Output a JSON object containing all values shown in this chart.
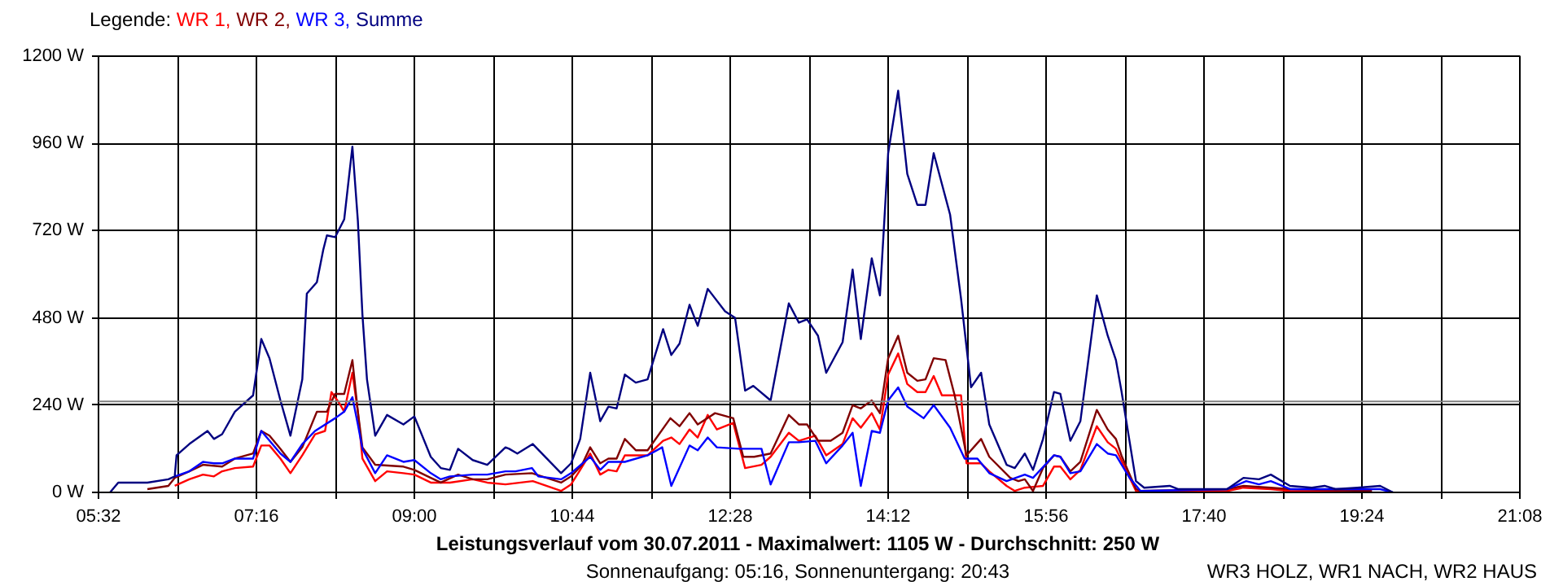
{
  "chart_data": {
    "type": "line",
    "title": "Leistungsverlauf vom 30.07.2011 - Maximalwert: 1105 W - Durchschnitt: 250 W",
    "subtitle": "Sonnenaufgang: 05:16, Sonnenuntergang: 20:43",
    "annotations": [
      "WR3 HOLZ, WR1 NACH, WR2 HAUS"
    ],
    "legend_title": "Legende:",
    "legend": "top left",
    "grid": true,
    "xlim": [
      5.5333,
      21.1333
    ],
    "ylim": [
      0,
      1200
    ],
    "xticks": [
      {
        "value": 5.5333,
        "label": "05:32"
      },
      {
        "value": 6.4,
        "label": null
      },
      {
        "value": 7.2667,
        "label": "07:16"
      },
      {
        "value": 8.1333,
        "label": null
      },
      {
        "value": 9,
        "label": "09:00"
      },
      {
        "value": 9.8667,
        "label": null
      },
      {
        "value": 10.7333,
        "label": "10:44"
      },
      {
        "value": 11.6,
        "label": null
      },
      {
        "value": 12.4667,
        "label": "12:28"
      },
      {
        "value": 13.3333,
        "label": null
      },
      {
        "value": 14.2,
        "label": "14:12"
      },
      {
        "value": 15.0667,
        "label": null
      },
      {
        "value": 15.9333,
        "label": "15:56"
      },
      {
        "value": 16.8,
        "label": null
      },
      {
        "value": 17.6667,
        "label": "17:40"
      },
      {
        "value": 18.5333,
        "label": null
      },
      {
        "value": 19.4,
        "label": "19:24"
      },
      {
        "value": 20.2667,
        "label": null
      },
      {
        "value": 21.1333,
        "label": "21:08"
      }
    ],
    "yticks": [
      {
        "value": 0,
        "label": "0 W"
      },
      {
        "value": 240,
        "label": "240 W"
      },
      {
        "value": 480,
        "label": "480 W"
      },
      {
        "value": 720,
        "label": "720 W"
      },
      {
        "value": 960,
        "label": "960 W"
      },
      {
        "value": 1200,
        "label": "1200 W"
      }
    ],
    "ref_lines": [
      {
        "axis": "y",
        "value": 250,
        "label": null,
        "color": "#808080"
      }
    ],
    "series": [
      {
        "name": "WR 1,",
        "color": "#ff0000",
        "x": [
          6.37,
          6.53,
          6.68,
          6.8,
          6.89,
          7.03,
          7.23,
          7.32,
          7.41,
          7.53,
          7.64,
          7.77,
          7.91,
          8.02,
          8.09,
          8.18,
          8.23,
          8.32,
          8.38,
          8.43,
          8.57,
          8.7,
          8.88,
          9.0,
          9.18,
          9.39,
          9.64,
          9.8,
          10.0,
          10.3,
          10.61,
          10.72,
          10.82,
          10.93,
          11.04,
          11.13,
          11.22,
          11.31,
          11.56,
          11.73,
          11.82,
          11.91,
          12.02,
          12.11,
          12.22,
          12.32,
          12.5,
          12.63,
          12.81,
          12.91,
          13.11,
          13.22,
          13.4,
          13.52,
          13.7,
          13.81,
          13.9,
          14.02,
          14.11,
          14.2,
          14.31,
          14.41,
          14.52,
          14.61,
          14.7,
          14.79,
          15.0,
          15.06,
          15.22,
          15.31,
          15.5,
          15.59,
          15.7,
          15.9,
          16.02,
          16.09,
          16.2,
          16.31,
          16.49,
          16.61,
          16.7,
          16.92,
          16.97,
          17.92,
          18.1,
          18.4,
          18.61,
          19.51
        ],
        "values": [
          18,
          36,
          49,
          44,
          58,
          67,
          71,
          129,
          129,
          93,
          53,
          102,
          160,
          169,
          276,
          244,
          222,
          329,
          222,
          93,
          31,
          58,
          53,
          49,
          27,
          27,
          36,
          27,
          22,
          31,
          4,
          22,
          62,
          107,
          49,
          62,
          58,
          102,
          102,
          142,
          151,
          133,
          173,
          151,
          213,
          173,
          191,
          67,
          76,
          98,
          164,
          142,
          156,
          102,
          133,
          204,
          178,
          218,
          173,
          324,
          382,
          298,
          276,
          276,
          320,
          267,
          267,
          80,
          80,
          58,
          18,
          4,
          13,
          18,
          71,
          71,
          36,
          62,
          182,
          138,
          120,
          4,
          0,
          4,
          13,
          9,
          4,
          0
        ]
      },
      {
        "name": "WR 2,",
        "color": "#800000",
        "x": [
          6.07,
          6.3,
          6.37,
          6.53,
          6.68,
          6.89,
          7.03,
          7.23,
          7.32,
          7.41,
          7.53,
          7.64,
          7.77,
          7.93,
          8.04,
          8.13,
          8.23,
          8.32,
          8.38,
          8.43,
          8.57,
          8.88,
          9.0,
          9.18,
          9.29,
          9.48,
          9.64,
          9.8,
          10.0,
          10.29,
          10.61,
          10.72,
          10.84,
          10.93,
          11.04,
          11.13,
          11.22,
          11.31,
          11.43,
          11.56,
          11.81,
          11.91,
          12.02,
          12.11,
          12.3,
          12.5,
          12.61,
          12.73,
          12.91,
          13.11,
          13.22,
          13.31,
          13.43,
          13.57,
          13.7,
          13.81,
          13.9,
          14.02,
          14.11,
          14.2,
          14.31,
          14.41,
          14.52,
          14.61,
          14.7,
          14.83,
          14.93,
          15.06,
          15.22,
          15.31,
          15.54,
          15.63,
          15.7,
          15.79,
          15.9,
          16.02,
          16.09,
          16.2,
          16.31,
          16.49,
          16.61,
          16.7,
          16.76,
          16.92,
          16.97,
          17.92,
          18.1,
          18.4,
          18.61,
          19.51
        ],
        "values": [
          9,
          18,
          40,
          58,
          76,
          71,
          93,
          107,
          169,
          156,
          120,
          84,
          124,
          222,
          222,
          271,
          271,
          364,
          222,
          124,
          76,
          71,
          62,
          40,
          27,
          49,
          36,
          36,
          49,
          53,
          27,
          44,
          76,
          124,
          80,
          93,
          93,
          147,
          116,
          116,
          204,
          182,
          218,
          187,
          218,
          204,
          98,
          98,
          107,
          213,
          187,
          187,
          142,
          142,
          164,
          240,
          231,
          253,
          218,
          369,
          431,
          329,
          307,
          311,
          369,
          364,
          267,
          102,
          147,
          98,
          40,
          31,
          36,
          4,
          67,
          102,
          98,
          58,
          84,
          227,
          173,
          147,
          102,
          9,
          4,
          9,
          18,
          13,
          9,
          4
        ]
      },
      {
        "name": "WR 3,",
        "color": "#0000ff",
        "x": [
          6.37,
          6.53,
          6.68,
          6.8,
          6.89,
          7.03,
          7.23,
          7.32,
          7.53,
          7.64,
          7.77,
          7.91,
          8.13,
          8.23,
          8.32,
          8.38,
          8.43,
          8.57,
          8.7,
          8.88,
          9.0,
          9.18,
          9.29,
          9.39,
          9.64,
          9.8,
          10.0,
          10.11,
          10.29,
          10.36,
          10.61,
          10.72,
          10.93,
          11.04,
          11.13,
          11.31,
          11.56,
          11.72,
          11.82,
          12.02,
          12.11,
          12.22,
          12.32,
          12.56,
          12.81,
          12.91,
          13.11,
          13.22,
          13.4,
          13.52,
          13.7,
          13.81,
          13.9,
          14.02,
          14.11,
          14.2,
          14.31,
          14.41,
          14.59,
          14.7,
          14.88,
          15.04,
          15.18,
          15.31,
          15.5,
          15.7,
          15.79,
          16.02,
          16.09,
          16.2,
          16.31,
          16.49,
          16.61,
          16.7,
          16.85,
          16.97,
          17.92,
          18.13,
          18.27,
          18.4,
          18.61,
          19.35,
          19.6,
          19.74
        ],
        "values": [
          44,
          58,
          84,
          80,
          80,
          93,
          93,
          169,
          107,
          84,
          133,
          169,
          204,
          222,
          262,
          187,
          120,
          53,
          102,
          84,
          89,
          53,
          36,
          44,
          49,
          49,
          58,
          58,
          67,
          44,
          36,
          53,
          98,
          62,
          84,
          84,
          102,
          124,
          18,
          129,
          116,
          151,
          124,
          120,
          120,
          22,
          138,
          138,
          142,
          80,
          129,
          164,
          18,
          169,
          164,
          253,
          289,
          236,
          204,
          240,
          178,
          93,
          93,
          53,
          31,
          49,
          40,
          102,
          98,
          53,
          58,
          133,
          107,
          102,
          40,
          4,
          9,
          31,
          22,
          31,
          9,
          9,
          9,
          0
        ]
      },
      {
        "name": "Summe",
        "color": "#000080",
        "x": [
          5.66,
          5.75,
          6.07,
          6.3,
          6.37,
          6.39,
          6.53,
          6.68,
          6.73,
          6.8,
          6.89,
          7.03,
          7.23,
          7.32,
          7.41,
          7.53,
          7.64,
          7.77,
          7.82,
          7.93,
          8.0,
          8.04,
          8.13,
          8.23,
          8.32,
          8.38,
          8.43,
          8.48,
          8.57,
          8.7,
          8.88,
          9.0,
          9.18,
          9.29,
          9.39,
          9.48,
          9.64,
          9.8,
          10.0,
          10.04,
          10.13,
          10.3,
          10.61,
          10.72,
          10.82,
          10.93,
          11.04,
          11.13,
          11.22,
          11.31,
          11.43,
          11.56,
          11.73,
          11.82,
          11.91,
          12.02,
          12.11,
          12.22,
          12.41,
          12.52,
          12.63,
          12.72,
          12.91,
          13.11,
          13.22,
          13.31,
          13.43,
          13.52,
          13.7,
          13.81,
          13.9,
          14.02,
          14.11,
          14.16,
          14.2,
          14.31,
          14.41,
          14.52,
          14.61,
          14.7,
          14.88,
          15.0,
          15.04,
          15.06,
          15.11,
          15.22,
          15.31,
          15.5,
          15.59,
          15.7,
          15.79,
          15.9,
          16.02,
          16.09,
          16.2,
          16.31,
          16.49,
          16.61,
          16.7,
          16.76,
          16.92,
          17.01,
          17.29,
          17.38,
          17.92,
          18.1,
          18.27,
          18.4,
          18.61,
          18.85,
          18.99,
          19.11,
          19.35,
          19.6,
          19.74
        ],
        "values": [
          0,
          27,
          27,
          36,
          44,
          102,
          133,
          160,
          169,
          147,
          160,
          222,
          267,
          422,
          369,
          253,
          156,
          311,
          547,
          578,
          667,
          707,
          702,
          751,
          951,
          747,
          489,
          311,
          156,
          213,
          187,
          209,
          98,
          67,
          62,
          120,
          89,
          76,
          124,
          120,
          107,
          133,
          53,
          80,
          147,
          329,
          196,
          236,
          231,
          324,
          302,
          311,
          449,
          378,
          409,
          516,
          458,
          560,
          498,
          480,
          280,
          293,
          253,
          520,
          467,
          476,
          431,
          329,
          413,
          613,
          422,
          644,
          542,
          756,
          933,
          1105,
          876,
          791,
          791,
          933,
          764,
          533,
          444,
          400,
          289,
          329,
          187,
          76,
          67,
          107,
          62,
          147,
          276,
          271,
          142,
          196,
          542,
          431,
          364,
          280,
          31,
          13,
          18,
          9,
          9,
          40,
          36,
          49,
          18,
          13,
          18,
          9,
          13,
          18,
          0
        ]
      }
    ]
  }
}
